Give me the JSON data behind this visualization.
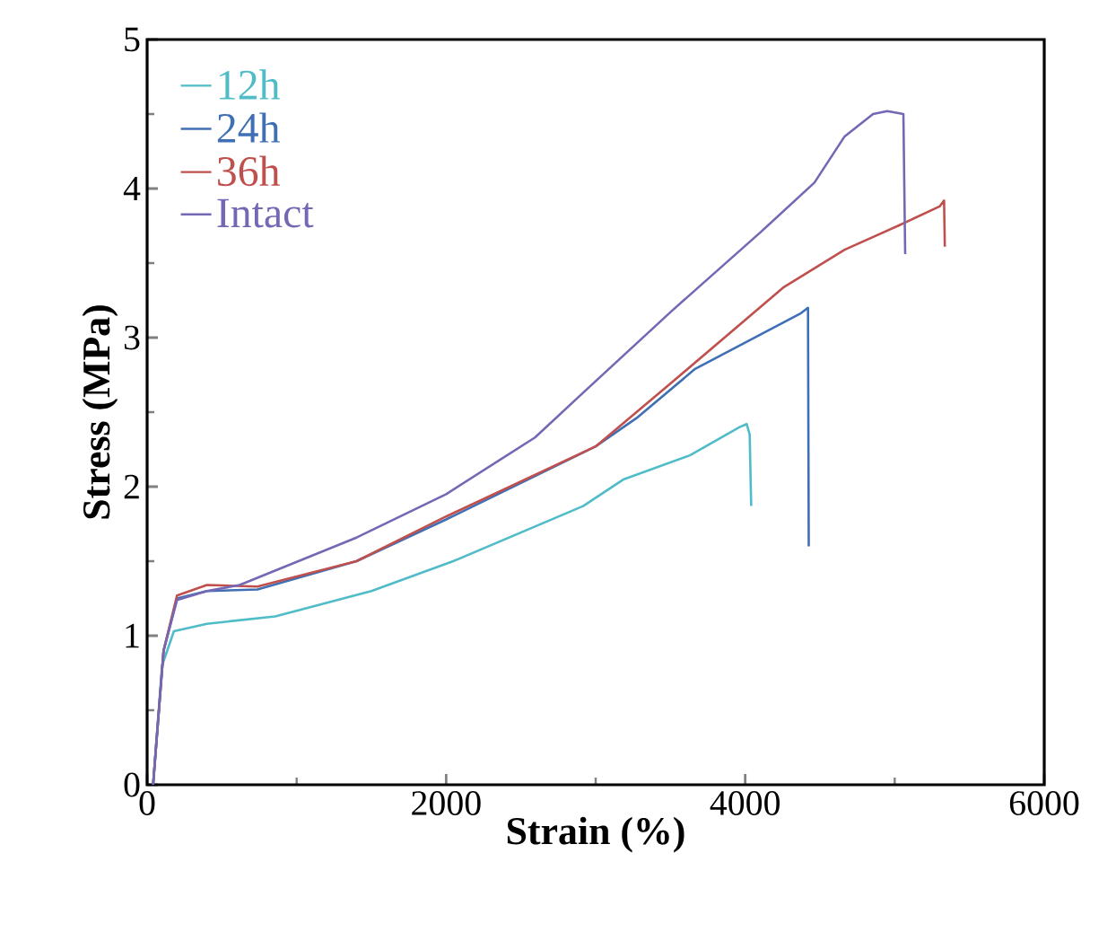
{
  "chart_data": {
    "type": "line",
    "xlabel": "Strain (%)",
    "ylabel": "Stress (MPa)",
    "xlim": [
      0,
      6000
    ],
    "ylim": [
      0,
      5
    ],
    "xticks": [
      0,
      2000,
      4000,
      6000
    ],
    "yticks": [
      0,
      1,
      2,
      3,
      4,
      5
    ],
    "grid": false,
    "legend": "top left",
    "marker": "none",
    "line_style": "solid",
    "series": [
      {
        "name": "12h",
        "color": "#4fbcc8",
        "x": [
          40,
          100,
          179,
          400,
          857,
          1500,
          2047,
          2916,
          3189,
          3630,
          3963,
          4010,
          4030,
          4040
        ],
        "values": [
          0,
          0.8,
          1.03,
          1.08,
          1.13,
          1.3,
          1.5,
          1.87,
          2.05,
          2.21,
          2.4,
          2.42,
          2.35,
          1.87
        ]
      },
      {
        "name": "24h",
        "color": "#3f6fb5",
        "x": [
          40,
          110,
          200,
          400,
          738,
          1400,
          2000,
          3000,
          3273,
          3665,
          4367,
          4420,
          4425
        ],
        "values": [
          0,
          0.9,
          1.25,
          1.3,
          1.31,
          1.5,
          1.78,
          2.27,
          2.46,
          2.79,
          3.16,
          3.2,
          1.6
        ]
      },
      {
        "name": "36h",
        "color": "#c0504d",
        "x": [
          40,
          110,
          200,
          400,
          738,
          1400,
          2000,
          3000,
          3510,
          4260,
          4665,
          5022,
          5300,
          5330,
          5335
        ],
        "values": [
          0,
          0.9,
          1.27,
          1.34,
          1.33,
          1.5,
          1.8,
          2.27,
          2.7,
          3.34,
          3.59,
          3.75,
          3.88,
          3.92,
          3.61
        ]
      },
      {
        "name": "Intact",
        "color": "#7468b4",
        "x": [
          40,
          110,
          200,
          400,
          619,
          1404,
          2000,
          2594,
          2916,
          3510,
          4106,
          4463,
          4665,
          4855,
          4950,
          5058,
          5070
        ],
        "values": [
          0,
          0.9,
          1.24,
          1.3,
          1.34,
          1.66,
          1.95,
          2.33,
          2.63,
          3.18,
          3.71,
          4.04,
          4.35,
          4.5,
          4.52,
          4.5,
          3.56
        ]
      }
    ]
  }
}
